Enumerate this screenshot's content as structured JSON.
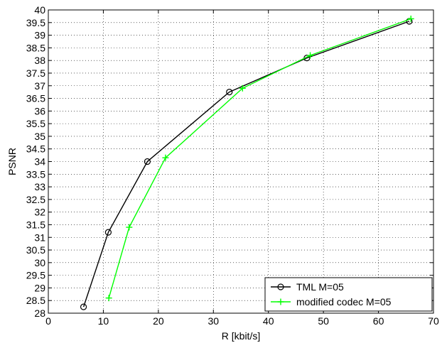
{
  "chart_data": {
    "type": "line",
    "title": "",
    "xlabel": "R [kbit/s]",
    "ylabel": "PSNR",
    "xlim": [
      0,
      70
    ],
    "ylim": [
      28,
      40
    ],
    "x_ticks": [
      0,
      10,
      20,
      30,
      40,
      50,
      60,
      70
    ],
    "y_ticks": [
      28,
      28.5,
      29,
      29.5,
      30,
      30.5,
      31,
      31.5,
      32,
      32.5,
      33,
      33.5,
      34,
      34.5,
      35,
      35.5,
      36,
      36.5,
      37,
      37.5,
      38,
      38.5,
      39,
      39.5,
      40
    ],
    "grid": true,
    "legend_position": "bottom-right",
    "series": [
      {
        "name": "TML M=05",
        "color": "#000000",
        "marker": "circle",
        "x": [
          6.4,
          10.9,
          18.0,
          32.9,
          47.0,
          65.6
        ],
        "y": [
          28.25,
          31.2,
          34.0,
          36.75,
          38.1,
          39.55
        ]
      },
      {
        "name": "modified codec M=05",
        "color": "#00ff00",
        "marker": "plus",
        "x": [
          11.0,
          14.7,
          21.3,
          35.3,
          47.6,
          65.9
        ],
        "y": [
          28.6,
          31.4,
          34.15,
          36.9,
          38.2,
          39.65
        ]
      }
    ]
  }
}
